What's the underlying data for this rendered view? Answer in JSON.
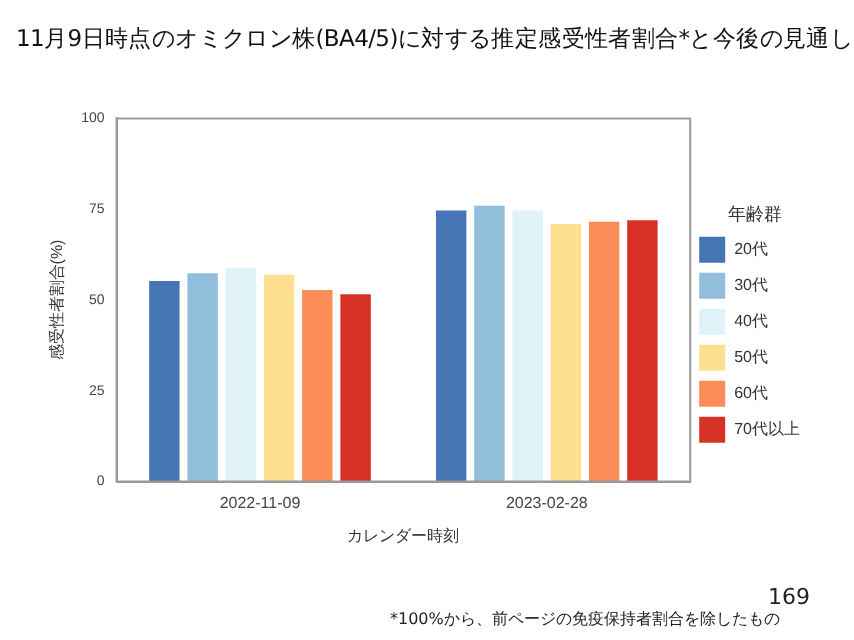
{
  "chart_data": {
    "type": "bar",
    "title": "11月9日時点のオミクロン株(BA4/5)に対する推定感受性者割合*と今後の見通し",
    "xlabel": "カレンダー時刻",
    "ylabel": "感受性者割合(%)",
    "legend_title": "年齢群",
    "legend": "right",
    "grid": false,
    "categories": [
      "2022-11-09",
      "2023-02-28"
    ],
    "series": [
      {
        "name": "20代",
        "color": "#4575b4",
        "values": [
          55.8,
          75.2
        ]
      },
      {
        "name": "30代",
        "color": "#91bfdb",
        "values": [
          57.9,
          76.5
        ]
      },
      {
        "name": "40代",
        "color": "#e0f3f8",
        "values": [
          59.3,
          75.2
        ]
      },
      {
        "name": "50代",
        "color": "#fee090",
        "values": [
          57.5,
          71.5
        ]
      },
      {
        "name": "60代",
        "color": "#fc8d59",
        "values": [
          53.3,
          72.1
        ]
      },
      {
        "name": "70代以上",
        "color": "#d73027",
        "values": [
          52.1,
          72.5
        ]
      }
    ],
    "ylim": [
      0,
      100
    ],
    "yticks": [
      0,
      25,
      50,
      75,
      100
    ],
    "annotations": [
      "169",
      "*100%から、前ページの免疫保持者割合を除したもの"
    ]
  }
}
